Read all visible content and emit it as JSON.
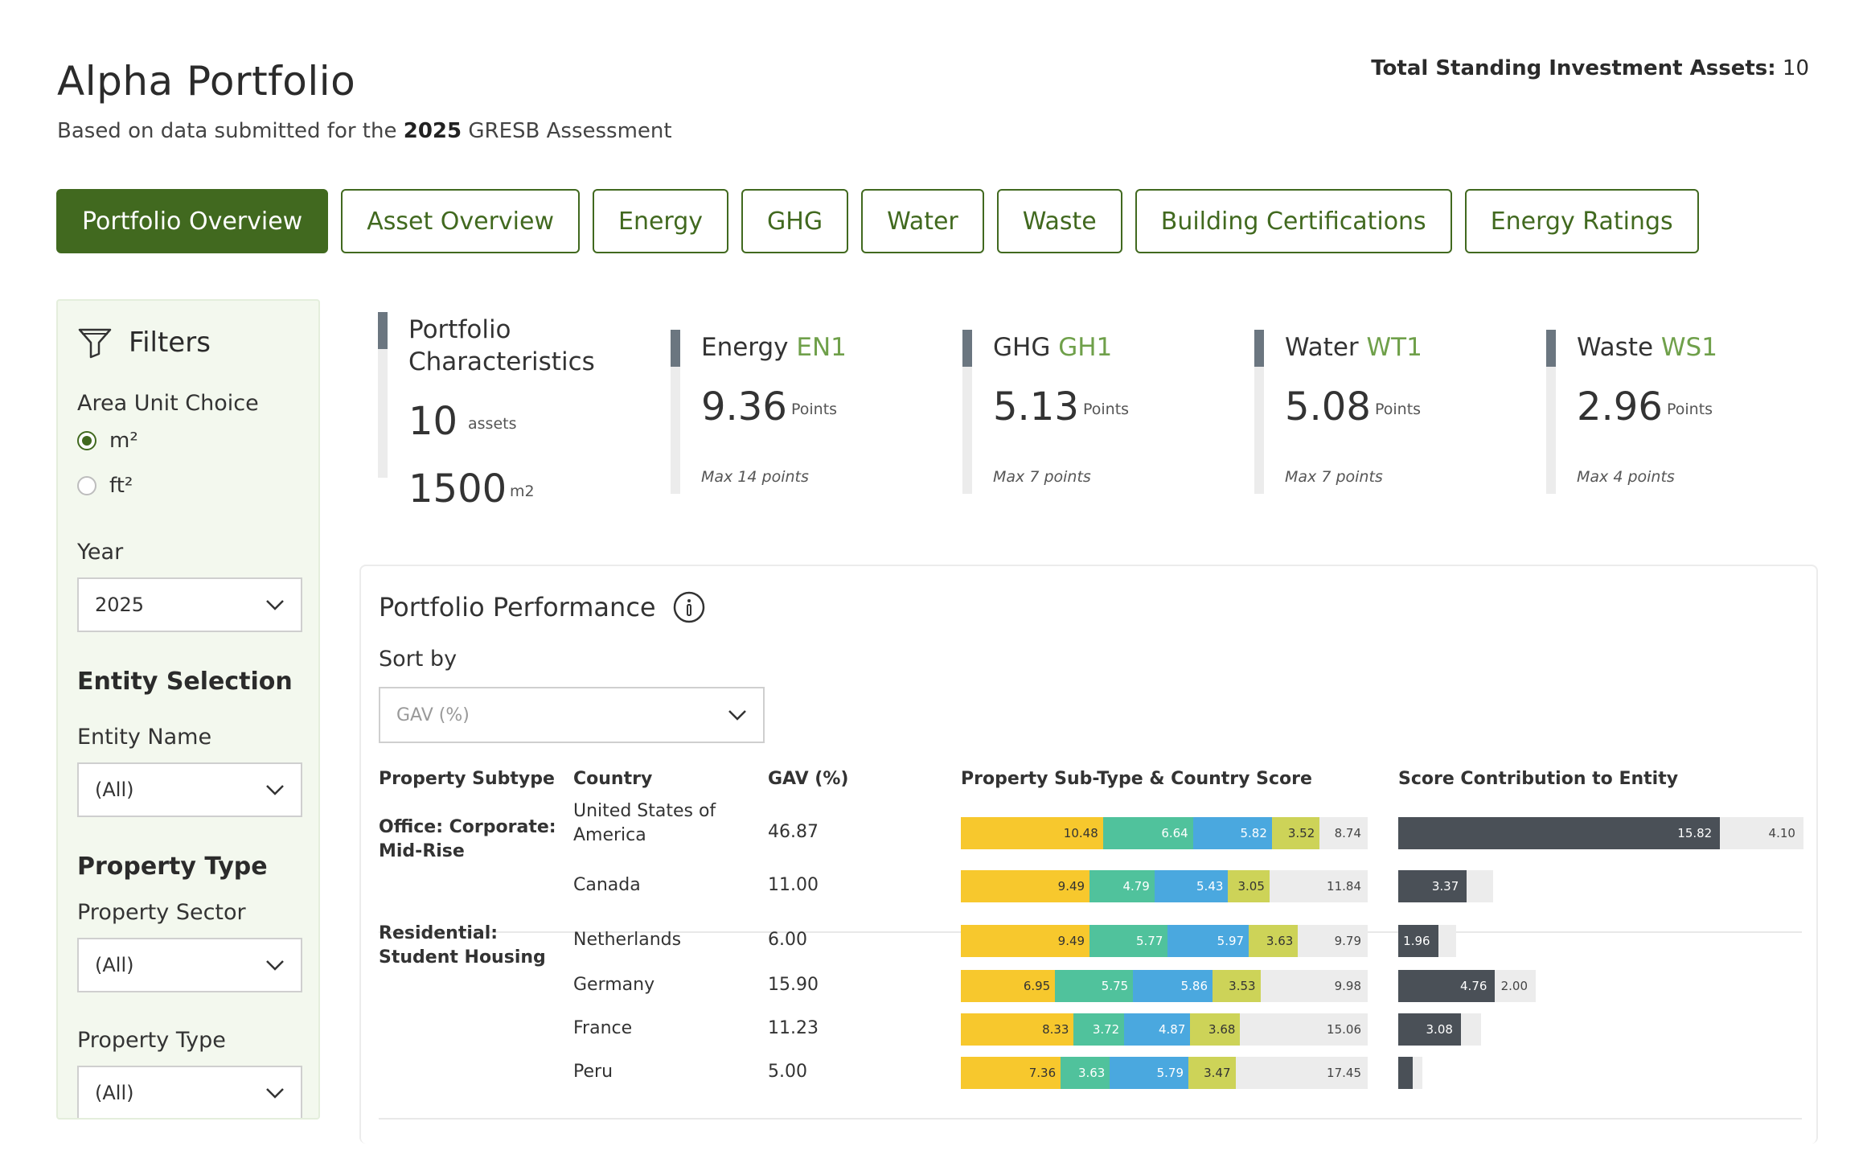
{
  "header": {
    "title": "Alpha Portfolio",
    "subtitle_prefix": "Based on data submitted for the ",
    "subtitle_year": "2025",
    "subtitle_suffix": " GRESB Assessment",
    "total_assets_label": "Total Standing Investment Assets:",
    "total_assets_value": "10"
  },
  "tabs": [
    {
      "label": "Portfolio Overview",
      "active": true
    },
    {
      "label": "Asset Overview"
    },
    {
      "label": "Energy"
    },
    {
      "label": "GHG"
    },
    {
      "label": "Water"
    },
    {
      "label": "Waste"
    },
    {
      "label": "Building Certifications"
    },
    {
      "label": "Energy Ratings"
    }
  ],
  "sidebar": {
    "title": "Filters",
    "icon": "filter-icon",
    "area_unit_label": "Area Unit Choice",
    "area_options": [
      "m²",
      "ft²"
    ],
    "area_selected": "m²",
    "year_label": "Year",
    "year_value": "2025",
    "entity_heading": "Entity Selection",
    "entity_name_label": "Entity Name",
    "entity_name_value": "(All)",
    "property_type_heading": "Property Type",
    "property_sector_label": "Property Sector",
    "property_sector_value": "(All)",
    "property_type_label": "Property Type",
    "property_type_value": "(All)"
  },
  "kpis": {
    "characteristics": {
      "title_line1": "Portfolio",
      "title_line2": "Characteristics",
      "assets_value": "10",
      "assets_unit": "assets",
      "area_value": "1500",
      "area_unit": "m2"
    },
    "energy": {
      "title": "Energy",
      "code": "EN1",
      "value": "9.36",
      "unit": "Points",
      "max": "Max 14 points"
    },
    "ghg": {
      "title": "GHG",
      "code": "GH1",
      "value": "5.13",
      "unit": "Points",
      "max": "Max 7 points"
    },
    "water": {
      "title": "Water",
      "code": "WT1",
      "value": "5.08",
      "unit": "Points",
      "max": "Max 7 points"
    },
    "waste": {
      "title": "Waste",
      "code": "WS1",
      "value": "2.96",
      "unit": "Points",
      "max": "Max 4 points"
    }
  },
  "performance": {
    "title": "Portfolio Performance",
    "sort_label": "Sort by",
    "sort_value": "GAV (%)",
    "columns": [
      "Property Subtype",
      "Country",
      "GAV (%)",
      "Property Sub-Type & Country Score",
      "Score Contribution to Entity"
    ],
    "groups": [
      {
        "subtype": "Office: Corporate: Mid-Rise",
        "rows": [
          {
            "country": "United States of America",
            "gav": "46.87",
            "scores": [
              10.48,
              6.64,
              5.82,
              3.52
            ],
            "remaining": 8.74,
            "contribution": 15.82,
            "contribution_rest": 4.1
          },
          {
            "country": "Canada",
            "gav": "11.00",
            "scores": [
              9.49,
              4.79,
              5.43,
              3.05
            ],
            "remaining": 11.84,
            "contribution": 3.37,
            "contribution_rest": 1.3
          }
        ]
      },
      {
        "subtype": "Residential: Student Housing",
        "rows": [
          {
            "country": "Netherlands",
            "gav": "6.00",
            "scores": [
              9.49,
              5.77,
              5.97,
              3.63
            ],
            "remaining": 9.79,
            "contribution": 1.96,
            "contribution_rest": 0.9
          },
          {
            "country": "Germany",
            "gav": "15.90",
            "scores": [
              6.95,
              5.75,
              5.86,
              3.53
            ],
            "remaining": 9.98,
            "contribution": 4.76,
            "contribution_rest": 2.0
          },
          {
            "country": "France",
            "gav": "11.23",
            "scores": [
              8.33,
              3.72,
              4.87,
              3.68
            ],
            "remaining": 15.06,
            "contribution": 3.08,
            "contribution_rest": 1.0
          },
          {
            "country": "Peru",
            "gav": "5.00",
            "scores": [
              7.36,
              3.63,
              5.79,
              3.47
            ],
            "remaining": 17.45,
            "contribution": 0.7,
            "contribution_rest": 0.5
          }
        ]
      }
    ],
    "score_max": 30,
    "contribution_max": 20,
    "colors": {
      "energy": "#f7c82d",
      "ghg": "#50c29c",
      "water": "#4aa8df",
      "waste": "#cdd358",
      "remaining": "#ececec",
      "contribution": "#4a5057"
    }
  }
}
